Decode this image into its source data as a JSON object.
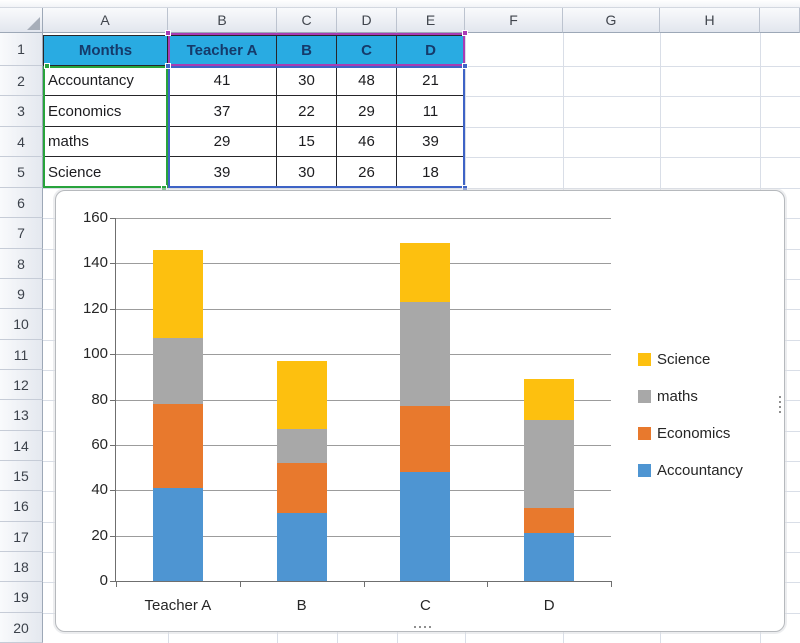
{
  "spreadsheet": {
    "column_headers": [
      "A",
      "B",
      "C",
      "D",
      "E",
      "F",
      "G",
      "H",
      ""
    ],
    "row_headers": [
      "1",
      "2",
      "3",
      "4",
      "5",
      "6",
      "7",
      "8",
      "9",
      "10",
      "11",
      "12",
      "13",
      "14",
      "15",
      "16",
      "17",
      "18",
      "19",
      "20"
    ],
    "colors": {
      "table_header_fill": "#29ABE2",
      "table_header_text": "#153A6A",
      "selection_values_blue": "#3E63C6",
      "selection_series_purple": "#A93BB4",
      "selection_category_green": "#28A33C"
    }
  },
  "table": {
    "headers": [
      "Months",
      "Teacher A",
      "B",
      "C",
      "D"
    ],
    "rows": [
      {
        "label": "Accountancy",
        "values": [
          "41",
          "30",
          "48",
          "21"
        ]
      },
      {
        "label": "Economics",
        "values": [
          "37",
          "22",
          "29",
          "11"
        ]
      },
      {
        "label": "maths",
        "values": [
          "29",
          "15",
          "46",
          "39"
        ]
      },
      {
        "label": "Science",
        "values": [
          "39",
          "30",
          "26",
          "18"
        ]
      }
    ]
  },
  "chart_data": {
    "type": "bar",
    "stacked": true,
    "title": "",
    "xlabel": "",
    "ylabel": "",
    "categories": [
      "Teacher A",
      "B",
      "C",
      "D"
    ],
    "series": [
      {
        "name": "Accountancy",
        "color": "#4E95D2",
        "values": [
          41,
          30,
          48,
          21
        ]
      },
      {
        "name": "Economics",
        "color": "#E8792D",
        "values": [
          37,
          22,
          29,
          11
        ]
      },
      {
        "name": "maths",
        "color": "#A8A8A8",
        "values": [
          29,
          15,
          46,
          39
        ]
      },
      {
        "name": "Science",
        "color": "#FDC00F",
        "values": [
          39,
          30,
          26,
          18
        ]
      }
    ],
    "stack_totals": [
      146,
      97,
      149,
      89
    ],
    "ylim": [
      0,
      160
    ],
    "ytick_step": 20,
    "ytick_labels": [
      "0",
      "20",
      "40",
      "60",
      "80",
      "100",
      "120",
      "140",
      "160"
    ],
    "grid": true,
    "legend_position": "right",
    "legend": [
      "Science",
      "maths",
      "Economics",
      "Accountancy"
    ]
  }
}
